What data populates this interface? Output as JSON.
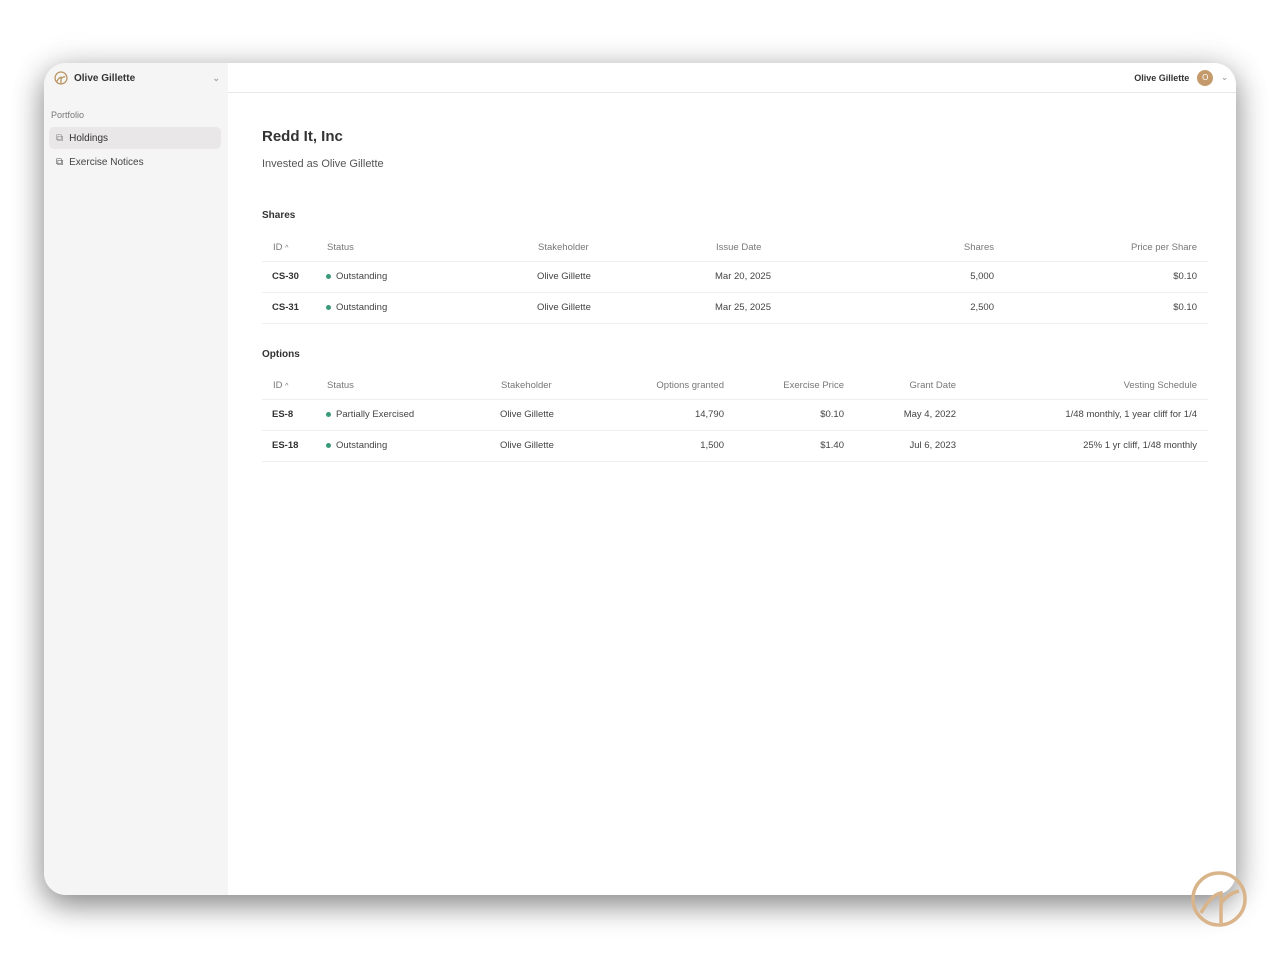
{
  "sidebar": {
    "account": "Olive Gillette",
    "section": "Portfolio",
    "items": [
      {
        "label": "Holdings",
        "active": true
      },
      {
        "label": "Exercise Notices",
        "active": false
      }
    ]
  },
  "topbar": {
    "user": "Olive Gillette",
    "avatar_initial": "O"
  },
  "page": {
    "title": "Redd It, Inc",
    "subtitle": "Invested as Olive Gillette"
  },
  "shares": {
    "title": "Shares",
    "headers": [
      "ID",
      "Status",
      "Stakeholder",
      "Issue Date",
      "Shares",
      "Price per Share"
    ],
    "rows": [
      [
        "CS-30",
        "Outstanding",
        "Olive Gillette",
        "Mar 20, 2025",
        "5,000",
        "$0.10"
      ],
      [
        "CS-31",
        "Outstanding",
        "Olive Gillette",
        "Mar 25, 2025",
        "2,500",
        "$0.10"
      ]
    ]
  },
  "options": {
    "title": "Options",
    "headers": [
      "ID",
      "Status",
      "Stakeholder",
      "Options granted",
      "Exercise Price",
      "Grant Date",
      "Vesting Schedule"
    ],
    "rows": [
      [
        "ES-8",
        "Partially Exercised",
        "Olive Gillette",
        "14,790",
        "$0.10",
        "May 4, 2022",
        "1/48 monthly, 1 year cliff for 1/4"
      ],
      [
        "ES-18",
        "Outstanding",
        "Olive Gillette",
        "1,500",
        "$1.40",
        "Jul 6, 2023",
        "25% 1 yr cliff, 1/48 monthly"
      ]
    ]
  },
  "colors": {
    "accent": "#c49a6c",
    "status_green": "#3a9a78"
  }
}
